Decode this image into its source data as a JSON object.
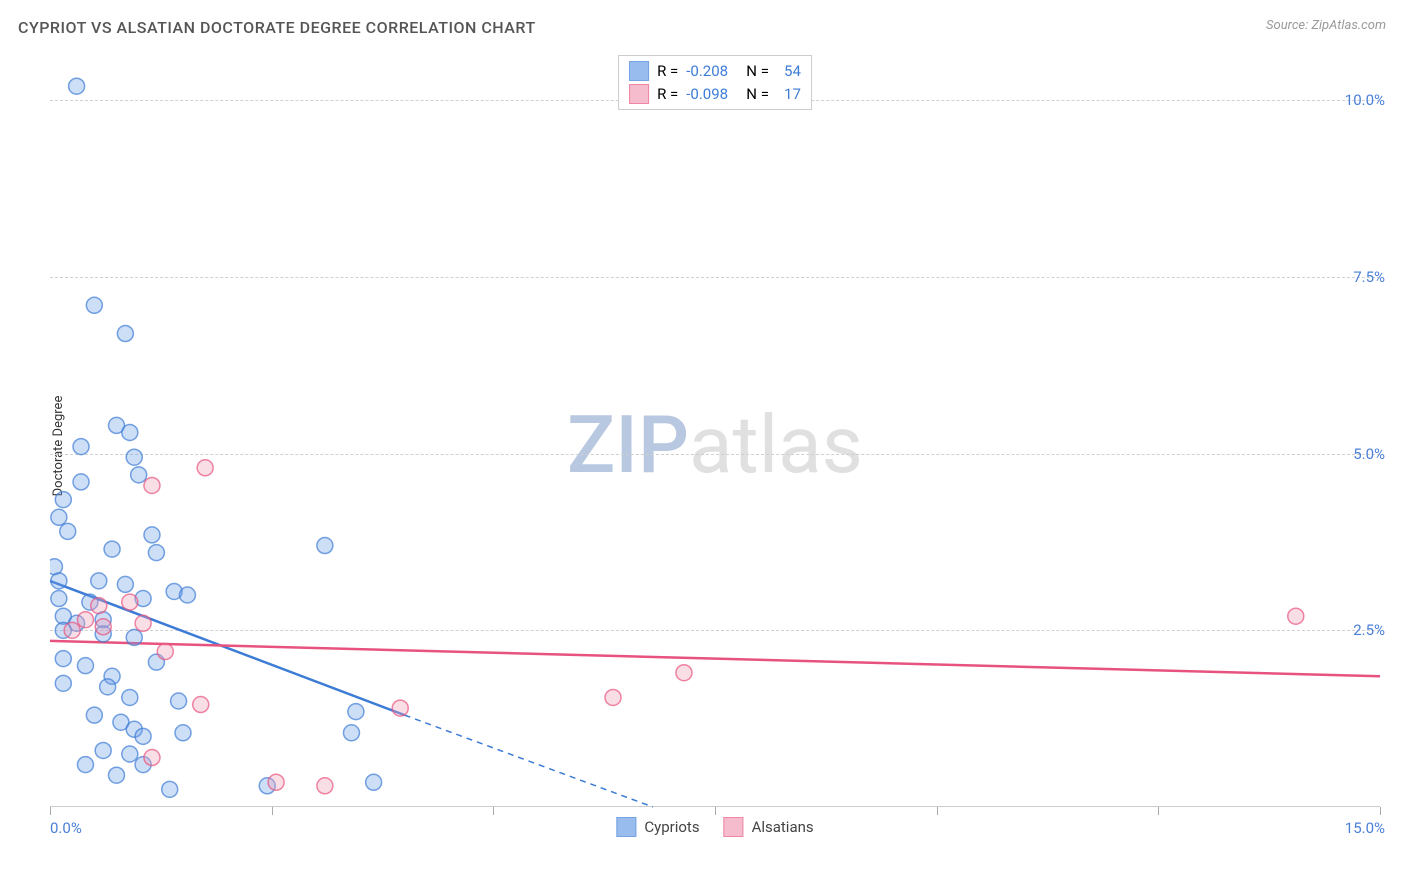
{
  "title": "CYPRIOT VS ALSATIAN DOCTORATE DEGREE CORRELATION CHART",
  "source_prefix": "Source: ",
  "source_name": "ZipAtlas.com",
  "y_axis_label": "Doctorate Degree",
  "watermark": {
    "zip": "ZIP",
    "atlas": "atlas"
  },
  "chart": {
    "type": "scatter-with-regression",
    "xlim": [
      0,
      15
    ],
    "ylim": [
      0,
      10.5
    ],
    "x_start_label": "0.0%",
    "x_end_label": "15.0%",
    "y_ticks": [
      {
        "value": 2.5,
        "label": "2.5%"
      },
      {
        "value": 5.0,
        "label": "5.0%"
      },
      {
        "value": 7.5,
        "label": "7.5%"
      },
      {
        "value": 10.0,
        "label": "10.0%"
      }
    ],
    "x_tick_values": [
      0,
      2.5,
      5.0,
      7.5,
      10.0,
      12.5,
      15.0
    ],
    "marker_radius": 8,
    "marker_stroke_width": 1.5,
    "marker_fill_opacity": 0.35,
    "regression_width": 2.5,
    "series": [
      {
        "name": "Cypriots",
        "color": "#6fa0e8",
        "stroke": "#3d7cd6",
        "r": -0.208,
        "n": 54,
        "regression": {
          "x1": 0,
          "y1": 3.2,
          "x2": 4.0,
          "y2": 1.3,
          "extrapolate_x2": 6.8,
          "extrapolate_y2": 0
        },
        "points": [
          [
            0.3,
            10.2
          ],
          [
            0.5,
            7.1
          ],
          [
            0.85,
            6.7
          ],
          [
            0.75,
            5.4
          ],
          [
            0.9,
            5.3
          ],
          [
            0.35,
            5.1
          ],
          [
            0.95,
            4.95
          ],
          [
            1.0,
            4.7
          ],
          [
            0.35,
            4.6
          ],
          [
            0.15,
            4.35
          ],
          [
            0.1,
            4.1
          ],
          [
            0.2,
            3.9
          ],
          [
            0.7,
            3.65
          ],
          [
            1.15,
            3.85
          ],
          [
            1.2,
            3.6
          ],
          [
            0.05,
            3.4
          ],
          [
            0.1,
            3.2
          ],
          [
            0.55,
            3.2
          ],
          [
            0.85,
            3.15
          ],
          [
            1.4,
            3.05
          ],
          [
            0.1,
            2.95
          ],
          [
            0.45,
            2.9
          ],
          [
            1.05,
            2.95
          ],
          [
            1.55,
            3.0
          ],
          [
            0.15,
            2.7
          ],
          [
            0.3,
            2.6
          ],
          [
            0.6,
            2.65
          ],
          [
            0.15,
            2.5
          ],
          [
            0.6,
            2.45
          ],
          [
            0.95,
            2.4
          ],
          [
            1.2,
            2.05
          ],
          [
            0.15,
            2.1
          ],
          [
            0.4,
            2.0
          ],
          [
            0.7,
            1.85
          ],
          [
            0.65,
            1.7
          ],
          [
            0.15,
            1.75
          ],
          [
            0.9,
            1.55
          ],
          [
            1.45,
            1.5
          ],
          [
            0.5,
            1.3
          ],
          [
            0.8,
            1.2
          ],
          [
            0.95,
            1.1
          ],
          [
            1.05,
            1.0
          ],
          [
            1.5,
            1.05
          ],
          [
            0.6,
            0.8
          ],
          [
            0.9,
            0.75
          ],
          [
            1.05,
            0.6
          ],
          [
            0.75,
            0.45
          ],
          [
            0.4,
            0.6
          ],
          [
            3.1,
            3.7
          ],
          [
            3.45,
            1.35
          ],
          [
            3.4,
            1.05
          ],
          [
            3.65,
            0.35
          ],
          [
            2.45,
            0.3
          ],
          [
            1.35,
            0.25
          ]
        ]
      },
      {
        "name": "Alsatians",
        "color": "#f2a0b8",
        "stroke": "#e7537e",
        "r": -0.098,
        "n": 17,
        "regression": {
          "x1": 0,
          "y1": 2.35,
          "x2": 15,
          "y2": 1.85
        },
        "points": [
          [
            1.75,
            4.8
          ],
          [
            1.15,
            4.55
          ],
          [
            0.55,
            2.85
          ],
          [
            0.9,
            2.9
          ],
          [
            0.4,
            2.65
          ],
          [
            0.6,
            2.55
          ],
          [
            1.05,
            2.6
          ],
          [
            1.3,
            2.2
          ],
          [
            1.7,
            1.45
          ],
          [
            1.15,
            0.7
          ],
          [
            2.55,
            0.35
          ],
          [
            3.1,
            0.3
          ],
          [
            3.95,
            1.4
          ],
          [
            6.35,
            1.55
          ],
          [
            7.15,
            1.9
          ],
          [
            14.05,
            2.7
          ],
          [
            0.25,
            2.5
          ]
        ]
      }
    ],
    "legend_top": {
      "r_label": "R =",
      "n_label": "N ="
    },
    "background_color": "#ffffff"
  }
}
